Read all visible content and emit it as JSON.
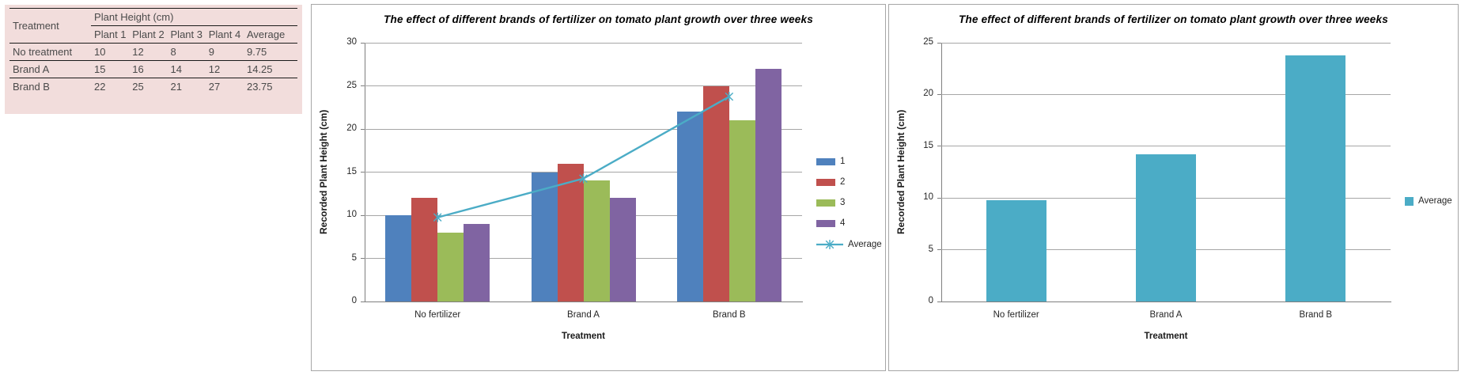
{
  "table": {
    "corner_header": "Treatment",
    "group_header": "Plant Height (cm)",
    "sub_headers": [
      "Plant 1",
      "Plant 2",
      "Plant 3",
      "Plant 4",
      "Average"
    ],
    "rows": [
      {
        "label": "No treatment",
        "values": [
          "10",
          "12",
          "8",
          "9",
          "9.75"
        ]
      },
      {
        "label": "Brand A",
        "values": [
          "15",
          "16",
          "14",
          "12",
          "14.25"
        ]
      },
      {
        "label": "Brand B",
        "values": [
          "22",
          "25",
          "21",
          "27",
          "23.75"
        ]
      }
    ]
  },
  "chart_data": [
    {
      "type": "bar",
      "title": "The effect of different brands of fertilizer on tomato plant growth over three weeks",
      "xlabel": "Treatment",
      "ylabel": "Recorded Plant Height (cm)",
      "categories": [
        "No fertilizer",
        "Brand A",
        "Brand B"
      ],
      "series": [
        {
          "name": "1",
          "type": "bar",
          "color": "#4f81bd",
          "values": [
            10,
            15,
            22
          ]
        },
        {
          "name": "2",
          "type": "bar",
          "color": "#c0504d",
          "values": [
            12,
            16,
            25
          ]
        },
        {
          "name": "3",
          "type": "bar",
          "color": "#9bbb59",
          "values": [
            8,
            14,
            21
          ]
        },
        {
          "name": "4",
          "type": "bar",
          "color": "#8064a2",
          "values": [
            9,
            12,
            27
          ]
        },
        {
          "name": "Average",
          "type": "line",
          "color": "#4bacc6",
          "values": [
            9.75,
            14.25,
            23.75
          ]
        }
      ],
      "ylim": [
        0,
        30
      ],
      "ytick_step": 5,
      "grid": true,
      "legend_position": "right"
    },
    {
      "type": "bar",
      "title": "The effect of different brands of fertilizer on tomato plant growth over three weeks",
      "xlabel": "Treatment",
      "ylabel": "Recorded Plant Height (cm)",
      "categories": [
        "No fertilizer",
        "Brand A",
        "Brand B"
      ],
      "series": [
        {
          "name": "Average",
          "type": "bar",
          "color": "#4bacc6",
          "values": [
            9.75,
            14.25,
            23.75
          ]
        }
      ],
      "ylim": [
        0,
        25
      ],
      "ytick_step": 5,
      "grid": true,
      "legend_position": "right"
    }
  ],
  "colors": {
    "gridline": "#a6a6a6",
    "axis": "#7f7f7f",
    "chart_text": "#262626",
    "table_bg": "#f2dddc",
    "table_border": "#1a1a1a",
    "table_text": "#4a4a4a",
    "panel_border": "#a6a6a6",
    "accent_teal": "#4bacc6"
  }
}
